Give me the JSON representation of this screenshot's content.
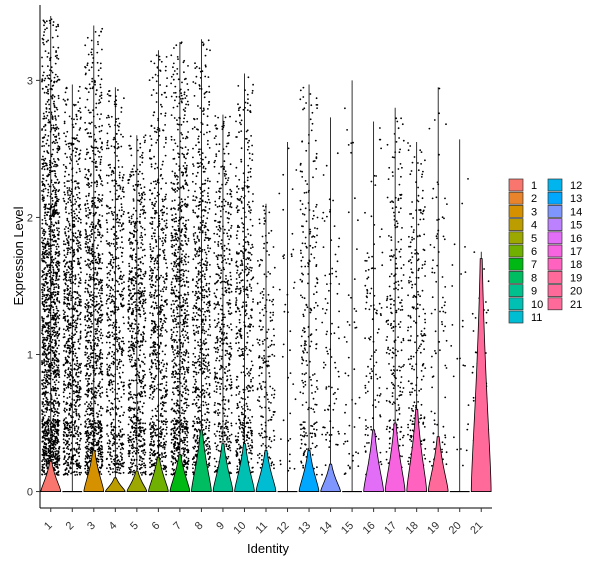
{
  "chart_data": {
    "type": "violin",
    "xlabel": "Identity",
    "ylabel": "Expression Level",
    "ylim": [
      -0.12,
      3.55
    ],
    "yticks": [
      0,
      1,
      2,
      3
    ],
    "categories": [
      "1",
      "2",
      "3",
      "4",
      "5",
      "6",
      "7",
      "8",
      "9",
      "10",
      "11",
      "12",
      "13",
      "14",
      "15",
      "16",
      "17",
      "18",
      "19",
      "20",
      "21"
    ],
    "colors": [
      "#F8766D",
      "#E9842C",
      "#D69100",
      "#BC9D00",
      "#9CA700",
      "#6FB000",
      "#00B813",
      "#00BD61",
      "#00C08E",
      "#00C0B4",
      "#00BDD4",
      "#00B5EE",
      "#00A7FF",
      "#7F96FF",
      "#BC81FF",
      "#E26EF7",
      "#F863DF",
      "#FF62BF",
      "#FF6A9A",
      "#FF6A9A",
      "#FF6A9A"
    ],
    "violin_peak_height": [
      0.22,
      0.0,
      0.3,
      0.1,
      0.15,
      0.25,
      0.27,
      0.45,
      0.35,
      0.35,
      0.3,
      0.0,
      0.3,
      0.2,
      0.0,
      0.45,
      0.5,
      0.6,
      0.4,
      0.0,
      1.7
    ],
    "max_value": [
      3.47,
      2.97,
      3.4,
      2.95,
      2.6,
      3.22,
      3.28,
      3.3,
      2.75,
      3.05,
      2.1,
      2.55,
      2.97,
      2.73,
      3.0,
      2.7,
      2.8,
      2.55,
      2.95,
      2.57,
      1.75
    ],
    "point_density": [
      1600,
      900,
      1000,
      600,
      700,
      700,
      900,
      700,
      500,
      500,
      200,
      40,
      250,
      90,
      50,
      120,
      250,
      250,
      90,
      25,
      60
    ],
    "legend": {
      "title": "",
      "labels": [
        "1",
        "2",
        "3",
        "4",
        "5",
        "6",
        "7",
        "8",
        "9",
        "10",
        "11",
        "12",
        "13",
        "14",
        "15",
        "16",
        "17",
        "18",
        "19",
        "20",
        "21"
      ]
    }
  }
}
